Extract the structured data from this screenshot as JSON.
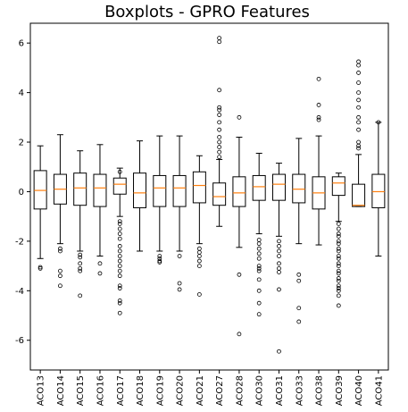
{
  "chart_data": {
    "type": "boxplot",
    "title": "Boxplots - GPRO Features",
    "xlabel": "",
    "ylabel": "",
    "ylim": [
      -7.2,
      6.8
    ],
    "yticks": [
      -6,
      -4,
      -2,
      0,
      2,
      4,
      6
    ],
    "grid": false,
    "colors": {
      "box": "#000000",
      "median": "#ff7f0e",
      "flier": "#000000"
    },
    "categories": [
      "ACO13",
      "ACO14",
      "ACO15",
      "ACO16",
      "ACO17",
      "ACO18",
      "ACO19",
      "ACO20",
      "ACO21",
      "ACO27",
      "ACO28",
      "ACO30",
      "ACO31",
      "ACO33",
      "ACO38",
      "ACO39",
      "ACO40",
      "ACO41"
    ],
    "series": [
      {
        "label": "ACO13",
        "whislo": -2.7,
        "q1": -0.7,
        "med": 0.05,
        "q3": 0.85,
        "whishi": 1.85,
        "fliers": [
          -3.05,
          -3.1
        ]
      },
      {
        "label": "ACO14",
        "whislo": -2.1,
        "q1": -0.5,
        "med": 0.1,
        "q3": 0.7,
        "whishi": 2.3,
        "fliers": [
          -2.3,
          -2.4,
          -3.2,
          -3.4,
          -3.8
        ]
      },
      {
        "label": "ACO15",
        "whislo": -2.4,
        "q1": -0.55,
        "med": 0.15,
        "q3": 0.75,
        "whishi": 1.65,
        "fliers": [
          -2.55,
          -2.65,
          -2.9,
          -3.1,
          -3.2,
          -4.2
        ]
      },
      {
        "label": "ACO16",
        "whislo": -2.6,
        "q1": -0.6,
        "med": 0.15,
        "q3": 0.7,
        "whishi": 1.9,
        "fliers": [
          -2.9,
          -3.3
        ]
      },
      {
        "label": "ACO17",
        "whislo": -1.0,
        "q1": -0.1,
        "med": 0.3,
        "q3": 0.55,
        "whishi": 0.95,
        "fliers": [
          0.8,
          -1.2,
          -1.3,
          -1.5,
          -1.7,
          -1.9,
          -2.2,
          -2.4,
          -2.6,
          -2.8,
          -3.0,
          -3.2,
          -3.4,
          -3.8,
          -3.9,
          -4.4,
          -4.5,
          -4.9
        ]
      },
      {
        "label": "ACO18",
        "whislo": -2.4,
        "q1": -0.65,
        "med": -0.05,
        "q3": 0.75,
        "whishi": 2.05,
        "fliers": []
      },
      {
        "label": "ACO19",
        "whislo": -2.4,
        "q1": -0.6,
        "med": 0.15,
        "q3": 0.65,
        "whishi": 2.25,
        "fliers": [
          -2.6,
          -2.7,
          -2.8,
          -2.85
        ]
      },
      {
        "label": "ACO20",
        "whislo": -2.4,
        "q1": -0.6,
        "med": 0.15,
        "q3": 0.65,
        "whishi": 2.25,
        "fliers": [
          -2.6,
          -3.7,
          -3.95
        ]
      },
      {
        "label": "ACO21",
        "whislo": -2.1,
        "q1": -0.45,
        "med": 0.25,
        "q3": 0.8,
        "whishi": 1.45,
        "fliers": [
          -2.3,
          -2.45,
          -2.6,
          -2.8,
          -3.0,
          -4.15
        ]
      },
      {
        "label": "ACO27",
        "whislo": -1.4,
        "q1": -0.55,
        "med": -0.2,
        "q3": 0.35,
        "whishi": 1.3,
        "fliers": [
          1.4,
          1.6,
          1.8,
          2.0,
          2.2,
          2.5,
          2.8,
          3.1,
          3.3,
          3.4,
          4.1,
          6.05,
          6.2
        ]
      },
      {
        "label": "ACO28",
        "whislo": -2.25,
        "q1": -0.6,
        "med": -0.05,
        "q3": 0.6,
        "whishi": 2.2,
        "fliers": [
          3.0,
          -3.35,
          -5.75
        ]
      },
      {
        "label": "ACO30",
        "whislo": -1.7,
        "q1": -0.35,
        "med": 0.2,
        "q3": 0.65,
        "whishi": 1.55,
        "fliers": [
          -1.95,
          -2.1,
          -2.3,
          -2.5,
          -2.7,
          -3.0,
          -3.1,
          -3.2,
          -3.55,
          -4.0,
          -4.5,
          -4.95
        ]
      },
      {
        "label": "ACO31",
        "whislo": -1.8,
        "q1": -0.35,
        "med": 0.3,
        "q3": 0.7,
        "whishi": 1.15,
        "fliers": [
          -2.0,
          -2.2,
          -2.4,
          -2.6,
          -2.9,
          -3.1,
          -3.25,
          -3.95,
          -6.45
        ]
      },
      {
        "label": "ACO33",
        "whislo": -2.1,
        "q1": -0.45,
        "med": 0.1,
        "q3": 0.7,
        "whishi": 2.15,
        "fliers": [
          -3.35,
          -3.6,
          -4.7,
          -5.25
        ]
      },
      {
        "label": "ACO38",
        "whislo": -2.15,
        "q1": -0.7,
        "med": -0.05,
        "q3": 0.6,
        "whishi": 2.25,
        "fliers": [
          2.9,
          3.0,
          3.5,
          4.55
        ]
      },
      {
        "label": "ACO39",
        "whislo": -1.2,
        "q1": -0.15,
        "med": 0.35,
        "q3": 0.6,
        "whishi": 0.75,
        "fliers": [
          -1.3,
          -1.5,
          -1.7,
          -1.8,
          -2.0,
          -2.1,
          -2.3,
          -2.4,
          -2.6,
          -2.7,
          -2.9,
          -3.0,
          -3.2,
          -3.3,
          -3.5,
          -3.6,
          -3.8,
          -3.9,
          -4.0,
          -4.2,
          -4.6
        ]
      },
      {
        "label": "ACO40",
        "whislo": -0.6,
        "q1": -0.6,
        "med": -0.55,
        "q3": 0.3,
        "whishi": 1.5,
        "fliers": [
          1.75,
          1.85,
          2.0,
          2.5,
          2.8,
          3.0,
          3.4,
          3.7,
          4.0,
          4.4,
          4.8,
          5.1,
          5.25
        ]
      },
      {
        "label": "ACO41",
        "whislo": -2.6,
        "q1": -0.65,
        "med": 0.0,
        "q3": 0.7,
        "whishi": 2.8,
        "fliers": [
          2.8
        ]
      }
    ]
  }
}
